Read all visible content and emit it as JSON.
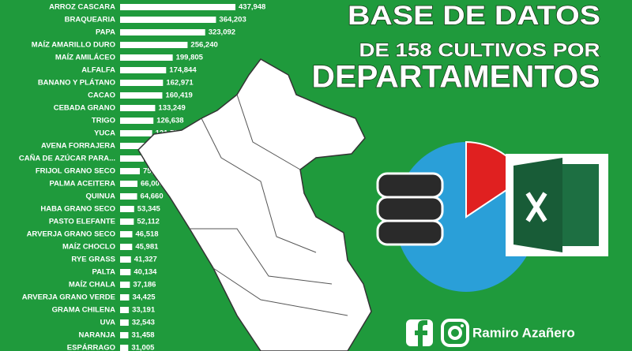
{
  "chart_data": {
    "type": "hbar",
    "title": "BASE DE DATOS",
    "subtitle": "DE 158 CULTIVOS POR",
    "subtitle_2": "DEPARTAMENTOS",
    "author": "Ramiro Azañero",
    "color": "#ffffff",
    "categories": [
      "ARROZ CASCARA",
      "BRAQUEARIA",
      "PAPA",
      "MAÍZ AMARILLO DURO",
      "MAÍZ AMILÁCEO",
      "ALFALFA",
      "BANANO Y PLÁTANO",
      "CACAO",
      "CEBADA GRANO",
      "TRIGO",
      "YUCA",
      "AVENA FORRAJERA",
      "CAÑA DE AZÚCAR PARA...",
      "FRIJOL GRANO SECO",
      "PALMA ACEITERA",
      "QUINUA",
      "HABA GRANO SECO",
      "PASTO ELEFANTE",
      "ARVERJA GRANO SECO",
      "MAÍZ CHOCLO",
      "RYE GRASS",
      "PALTA",
      "MAÍZ CHALA",
      "ARVERJA GRANO VERDE",
      "GRAMA CHILENA",
      "UVA",
      "NARANJA",
      "ESPÁRRAGO"
    ],
    "values": [
      437948,
      364203,
      323092,
      256240,
      199805,
      174844,
      162971,
      160419,
      133249,
      126638,
      121778,
      110180,
      90000,
      75000,
      66000,
      64660,
      53345,
      52112,
      46518,
      45981,
      41327,
      40134,
      37186,
      34425,
      33191,
      32543,
      31458,
      31005
    ],
    "value_labels": [
      "437,948",
      "364,203",
      "323,092",
      "256,240",
      "199,805",
      "174,844",
      "162,971",
      "160,419",
      "133,249",
      "126,638",
      "121,778",
      "110,180",
      "90,000",
      "75,000",
      "66,000",
      "64,660",
      "53,345",
      "52,112",
      "46,518",
      "45,981",
      "41,327",
      "40,134",
      "37,186",
      "34,425",
      "33,191",
      "32,543",
      "31,458",
      "31,005"
    ]
  }
}
